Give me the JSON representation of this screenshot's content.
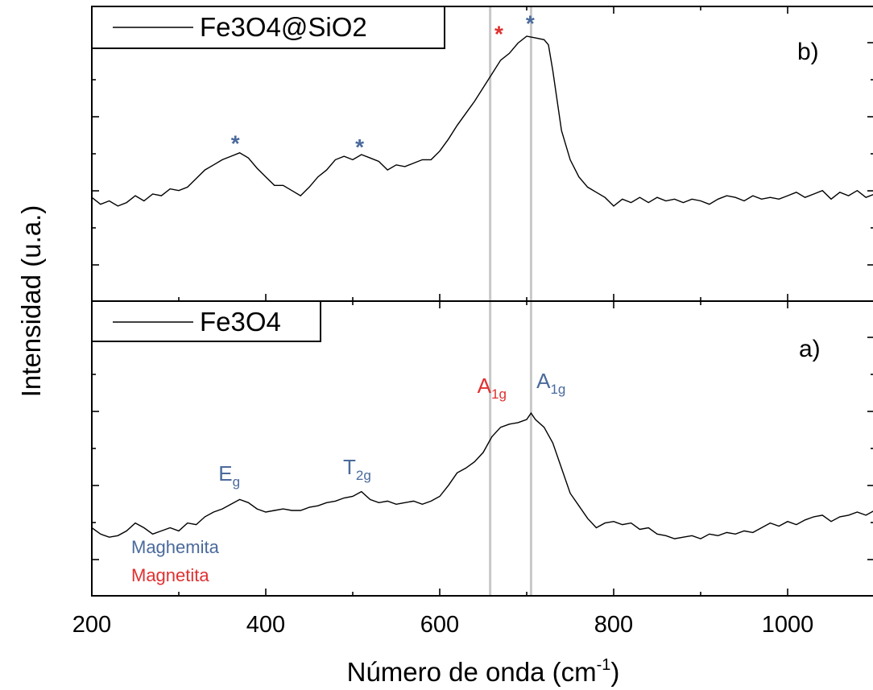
{
  "chart_data": [
    {
      "panel_label": "b)",
      "type": "line",
      "legend": "Fe3O4@SiO2",
      "xlim": [
        200,
        1100
      ],
      "color": "#000000",
      "series": [
        {
          "name": "Fe3O4@SiO2",
          "x": [
            200,
            210,
            220,
            230,
            240,
            250,
            260,
            270,
            280,
            290,
            300,
            310,
            320,
            330,
            340,
            350,
            360,
            370,
            380,
            390,
            400,
            410,
            420,
            430,
            440,
            450,
            460,
            470,
            480,
            490,
            500,
            510,
            520,
            530,
            540,
            550,
            560,
            570,
            580,
            590,
            600,
            610,
            620,
            630,
            640,
            650,
            660,
            670,
            680,
            690,
            700,
            710,
            720,
            725,
            730,
            740,
            750,
            760,
            770,
            780,
            790,
            800,
            810,
            820,
            830,
            840,
            850,
            860,
            870,
            880,
            890,
            900,
            910,
            920,
            930,
            940,
            950,
            960,
            970,
            980,
            990,
            1000,
            1010,
            1020,
            1030,
            1040,
            1050,
            1060,
            1070,
            1080,
            1090,
            1100
          ],
          "y": [
            0.06,
            0.02,
            0.04,
            0.01,
            0.03,
            0.07,
            0.04,
            0.08,
            0.07,
            0.11,
            0.1,
            0.12,
            0.17,
            0.22,
            0.25,
            0.28,
            0.3,
            0.32,
            0.29,
            0.23,
            0.18,
            0.13,
            0.13,
            0.1,
            0.07,
            0.12,
            0.18,
            0.22,
            0.28,
            0.3,
            0.28,
            0.31,
            0.29,
            0.27,
            0.22,
            0.25,
            0.24,
            0.26,
            0.28,
            0.28,
            0.33,
            0.4,
            0.48,
            0.55,
            0.62,
            0.7,
            0.78,
            0.86,
            0.9,
            0.96,
            1.0,
            0.99,
            0.98,
            0.95,
            0.8,
            0.45,
            0.28,
            0.18,
            0.12,
            0.09,
            0.06,
            0.01,
            0.05,
            0.03,
            0.06,
            0.03,
            0.06,
            0.04,
            0.05,
            0.03,
            0.05,
            0.04,
            0.02,
            0.05,
            0.07,
            0.06,
            0.04,
            0.07,
            0.05,
            0.06,
            0.05,
            0.07,
            0.09,
            0.06,
            0.08,
            0.1,
            0.05,
            0.09,
            0.07,
            0.1,
            0.06,
            0.08
          ]
        }
      ],
      "markers": [
        {
          "x": 365,
          "y": 0.33,
          "symbol": "*",
          "color": "#4a6a9c"
        },
        {
          "x": 508,
          "y": 0.31,
          "symbol": "*",
          "color": "#4a6a9c"
        },
        {
          "x": 668,
          "y": 0.97,
          "symbol": "*",
          "color": "#e03030"
        },
        {
          "x": 704,
          "y": 1.03,
          "symbol": "*",
          "color": "#4a6a9c"
        }
      ]
    },
    {
      "panel_label": "a)",
      "type": "line",
      "legend": "Fe3O4",
      "xlim": [
        200,
        1100
      ],
      "xticks": [
        200,
        400,
        600,
        800,
        1000
      ],
      "xlabel": "Número de onda (cm",
      "xlabel_sup": "-1",
      "xlabel_end": ")",
      "ylabel": "Intensidad (u.a.)",
      "color": "#000000",
      "series": [
        {
          "name": "Fe3O4",
          "x": [
            200,
            210,
            220,
            230,
            240,
            250,
            260,
            270,
            280,
            290,
            300,
            310,
            320,
            330,
            340,
            350,
            360,
            370,
            380,
            390,
            400,
            410,
            420,
            430,
            440,
            450,
            460,
            470,
            480,
            490,
            500,
            510,
            520,
            530,
            540,
            550,
            560,
            570,
            580,
            590,
            600,
            610,
            620,
            630,
            640,
            650,
            660,
            670,
            680,
            690,
            700,
            705,
            710,
            720,
            730,
            740,
            750,
            760,
            770,
            780,
            790,
            800,
            810,
            820,
            830,
            840,
            850,
            860,
            870,
            880,
            890,
            900,
            910,
            920,
            930,
            940,
            950,
            960,
            970,
            980,
            990,
            1000,
            1010,
            1020,
            1030,
            1040,
            1050,
            1060,
            1070,
            1080,
            1090,
            1100
          ],
          "y": [
            0.1,
            0.06,
            0.04,
            0.05,
            0.08,
            0.13,
            0.1,
            0.06,
            0.08,
            0.1,
            0.08,
            0.13,
            0.12,
            0.17,
            0.2,
            0.22,
            0.25,
            0.28,
            0.26,
            0.22,
            0.2,
            0.21,
            0.22,
            0.21,
            0.21,
            0.23,
            0.24,
            0.26,
            0.27,
            0.29,
            0.3,
            0.33,
            0.28,
            0.26,
            0.27,
            0.25,
            0.26,
            0.27,
            0.25,
            0.27,
            0.3,
            0.37,
            0.45,
            0.48,
            0.52,
            0.58,
            0.68,
            0.74,
            0.76,
            0.77,
            0.79,
            0.83,
            0.79,
            0.74,
            0.64,
            0.48,
            0.32,
            0.24,
            0.16,
            0.1,
            0.13,
            0.14,
            0.12,
            0.13,
            0.09,
            0.1,
            0.06,
            0.05,
            0.03,
            0.04,
            0.05,
            0.03,
            0.06,
            0.05,
            0.07,
            0.06,
            0.08,
            0.07,
            0.1,
            0.13,
            0.11,
            0.14,
            0.12,
            0.15,
            0.17,
            0.18,
            0.14,
            0.17,
            0.18,
            0.2,
            0.18,
            0.21
          ]
        }
      ],
      "peak_labels": [
        {
          "main": "E",
          "sub": "g",
          "x": 358,
          "y": 0.4,
          "color": "#4a6a9c"
        },
        {
          "main": "T",
          "sub": "2g",
          "x": 505,
          "y": 0.44,
          "color": "#4a6a9c"
        },
        {
          "main": "A",
          "sub": "1g",
          "x": 660,
          "y": 0.96,
          "color": "#e03030"
        },
        {
          "main": "A",
          "sub": "1g",
          "x": 728,
          "y": 0.99,
          "color": "#4a6a9c"
        }
      ],
      "notes": [
        {
          "text": "Maghemita",
          "color": "#4a6a9c"
        },
        {
          "text": "Magnetita",
          "color": "#e03030"
        }
      ]
    }
  ],
  "reference_lines": [
    {
      "x": 658,
      "color": "#c8c8c8"
    },
    {
      "x": 705,
      "color": "#c8c8c8"
    }
  ]
}
